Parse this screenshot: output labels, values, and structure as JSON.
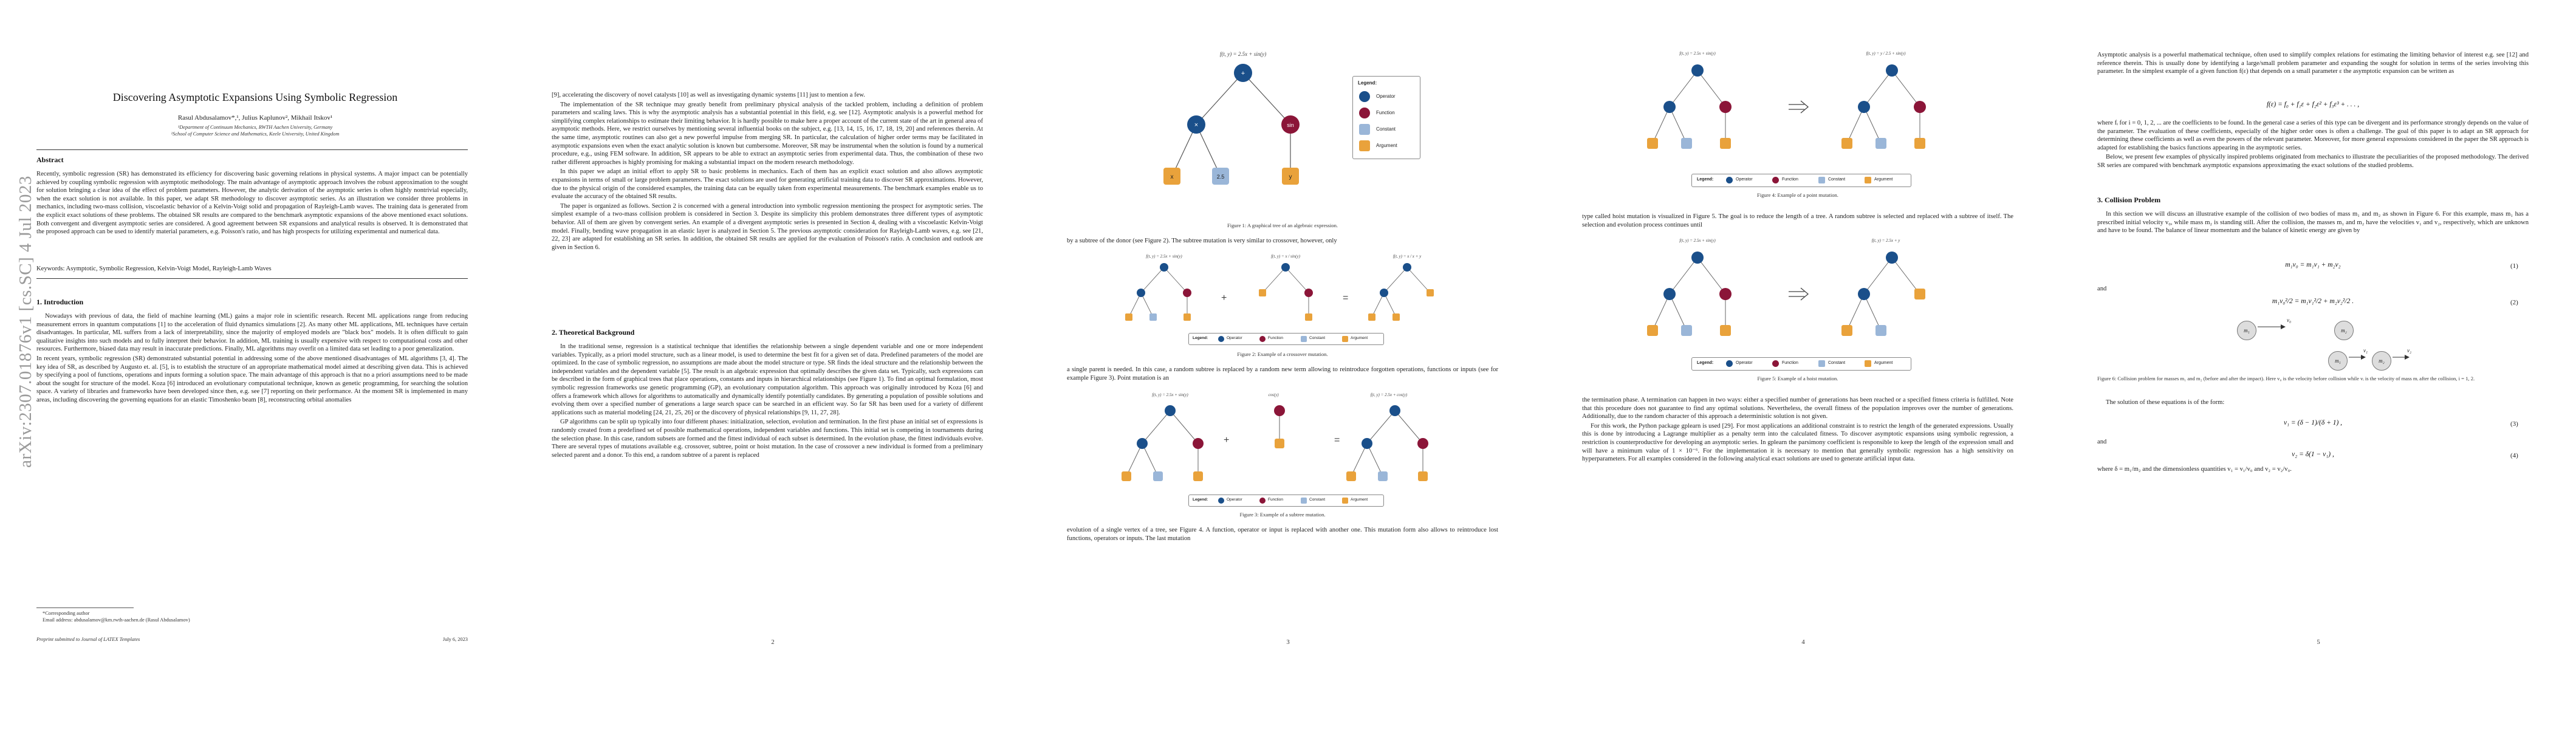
{
  "arxiv_stamp": "arXiv:2307.01876v1 [cs.SC] 4 Jul 2023",
  "colors": {
    "operator": "#1a4f8a",
    "function": "#8b1538",
    "constant": "#9ab6d8",
    "argument": "#e9a23b"
  },
  "page1": {
    "title": "Discovering Asymptotic Expansions Using Symbolic Regression",
    "authors": "Rasul Abdusalamov*,¹, Julius Kaplunov², Mikhail Itskov¹",
    "affil1": "¹Department of Continuum Mechanics, RWTH Aachen University, Germany",
    "affil2": "²School of Computer Science and Mathematics, Keele University, United Kingdom",
    "abstract_heading": "Abstract",
    "abstract": "Recently, symbolic regression (SR) has demonstrated its efficiency for discovering basic governing relations in physical systems. A major impact can be potentially achieved by coupling symbolic regression with asymptotic methodology. The main advantage of asymptotic approach involves the robust approximation to the sought for solution bringing a clear idea of the effect of problem parameters. However, the analytic derivation of the asymptotic series is often highly nontrivial especially, when the exact solution is not available. In this paper, we adapt SR methodology to discover asymptotic series. As an illustration we consider three problems in mechanics, including two-mass collision, viscoelastic behavior of a Kelvin-Voigt solid and propagation of Rayleigh-Lamb waves. The training data is generated from the explicit exact solutions of these problems. The obtained SR results are compared to the benchmark asymptotic expansions of the above mentioned exact solutions. Both convergent and divergent asymptotic series are considered. A good agreement between SR expansions and analytical results is observed. It is demonstrated that the proposed approach can be used to identify material parameters, e.g. Poisson's ratio, and has high prospects for utilizing experimental and numerical data.",
    "keywords": "Keywords: Asymptotic, Symbolic Regression, Kelvin-Voigt Model, Rayleigh-Lamb Waves",
    "intro_heading": "1. Introduction",
    "intro_p1": "Nowadays with previous of data, the field of machine learning (ML) gains a major role in scientific research. Recent ML applications range from reducing measurement errors in quantum computations [1] to the acceleration of fluid dynamics simulations [2]. As many other ML applications, ML techniques have certain disadvantages. In particular, ML suffers from a lack of interpretability, since the majority of employed models are \"black box\" models. It is often difficult to gain qualitative insights into such models and to fully interpret their behavior. In addition, ML training is usually expensive with respect to computational costs and other resources. Furthermore, biased data may result in inaccurate predictions. Finally, ML algorithms may overfit on a limited data set leading to a poor generalization.",
    "intro_p2": "In recent years, symbolic regression (SR) demonstrated substantial potential in addressing some of the above mentioned disadvantages of ML algorithms [3, 4]. The key idea of SR, as described by Augusto et. al. [5], is to establish the structure of an appropriate mathematical model aimed at describing given data. This is achieved by specifying a pool of functions, operations and inputs forming a solution space. The main advantage of this approach is that no a priori assumptions need to be made about the sought for structure of the model. Koza [6] introduced an evolutionary computational technique, known as genetic programming, for searching the solution space. A variety of libraries and frameworks have been developed since then, e.g. see [7] reporting on their performance. At the moment SR is implemented in many areas, including discovering the governing equations for an elastic Timoshenko beam [8], reconstructing orbital anomalies",
    "footnote_mark": "*Corresponding author",
    "footnote_email": "Email address: abdusalamov@km.rwth-aachen.de (Rasul Abdusalamov)",
    "preprint": "Preprint submitted to Journal of LATEX Templates",
    "date": "July 6, 2023"
  },
  "page2": {
    "p1": "[9], accelerating the discovery of novel catalysts [10] as well as investigating dynamic systems [11] just to mention a few.",
    "p2": "The implementation of the SR technique may greatly benefit from preliminary physical analysis of the tackled problem, including a definition of problem parameters and scaling laws. This is why the asymptotic analysis has a substantial potential in this field, e.g. see [12]. Asymptotic analysis is a powerful method for simplifying complex relationships to estimate their limiting behavior. It is hardly possible to make here a proper account of the current state of the art in general area of asymptotic methods. Here, we restrict ourselves by mentioning several influential books on the subject, e.g. [13, 14, 15, 16, 17, 18, 19, 20] and references therein. At the same time, asymptotic routines can also get a new powerful impulse from merging SR. In particular, the calculation of higher order terms may be facilitated in asymptotic expansions even when the exact analytic solution is known but cumbersome. Moreover, SR may be instrumental when the solution is found by a numerical procedure, e.g., using FEM software. In addition, SR appears to be able to extract an asymptotic series from experimental data. Thus, the combination of these two rather different approaches is highly promising for making a substantial impact on the modern research methodology.",
    "p3": "In this paper we adapt an initial effort to apply SR to basic problems in mechanics. Each of them has an explicit exact solution and also allows asymptotic expansions in terms of small or large problem parameters. The exact solutions are used for generating artificial training data to discover SR approximations. However, due to the physical origin of the considered examples, the training data can be equally taken from experimental measurements. The benchmark examples enable us to evaluate the accuracy of the obtained SR results.",
    "p4": "The paper is organized as follows. Section 2 is concerned with a general introduction into symbolic regression mentioning the prospect for asymptotic series. The simplest example of a two-mass collision problem is considered in Section 3. Despite its simplicity this problem demonstrates three different types of asymptotic behavior. All of them are given by convergent series. An example of a divergent asymptotic series is presented in Section 4, dealing with a viscoelastic Kelvin-Voigt model. Finally, bending wave propagation in an elastic layer is analyzed in Section 5. The previous asymptotic consideration for Rayleigh-Lamb waves, e.g. see [21, 22, 23] are adapted for establishing an SR series. In addition, the obtained SR results are applied for the evaluation of Poisson's ratio. A conclusion and outlook are given in Section 6.",
    "heading": "2. Theoretical Background",
    "p5": "In the traditional sense, regression is a statistical technique that identifies the relationship between a single dependent variable and one or more independent variables. Typically, as a priori model structure, such as a linear model, is used to determine the best fit for a given set of data. Predefined parameters of the model are optimized. In the case of symbolic regression, no assumptions are made about the model structure or type. SR finds the ideal structure and the relationship between the independent variables and the dependent variable [5]. The result is an algebraic expression that optimally describes the given data set. Typically, such expressions can be described in the form of graphical trees that place operations, constants and inputs in hierarchical relationships (see Figure 1). To find an optimal formulation, most symbolic regression frameworks use genetic programming (GP), an evolutionary computation algorithm. This approach was originally introduced by Koza [6] and offers a framework which allows for algorithms to automatically and dynamically identify potentially candidates. By generating a population of possible solutions and evolving them over a specified number of generations a large search space can be searched in an efficient way. So far SR has been used for a variety of different applications such as material modeling [24, 21, 25, 26] or the discovery of physical relationships [9, 11, 27, 28].",
    "p6": "GP algorithms can be split up typically into four different phases: initialization, selection, evolution and termination. In the first phase an initial set of expressions is randomly created from a predefined set of possible mathematical operations, independent variables and functions. This initial set is competing in tournaments during the selection phase. In this case, random subsets are formed and the fittest individual of each subset is determined. In the evolution phase, the fittest individuals evolve. There are several types of mutations available e.g. crossover, subtree, point or hoist mutation. In the case of crossover a new individual is formed from a preliminary selected parent and a donor. To this end, a random subtree of a parent is replaced",
    "page_num": "2"
  },
  "page3": {
    "fig1_title": "f(t, y) = 2.5x + sin(y)",
    "fig1_caption": "Figure 1: A graphical tree of an algebraic expression.",
    "legend_label": "Legend:",
    "legend_operator": "Operator",
    "legend_function": "Function",
    "legend_constant": "Constant",
    "legend_argument": "Argument",
    "node_mul": "×",
    "node_add": "+",
    "node_sin": "sin",
    "node_x": "x",
    "node_y": "y",
    "node_c": "2.5",
    "p1": "by a subtree of the donor (see Figure 2). The subtree mutation is very similar to crossover, however, only",
    "fig2_t1": "f(t, y) = 2.5x + sin(y)",
    "fig2_t2": "f(t, y) = x / sin(y)",
    "fig2_t3": "f(t, y) = x / x + y",
    "fig2_plus": "+",
    "fig2_eq": "=",
    "fig2_caption": "Figure 2: Example of a crossover mutation.",
    "p2": "a single parent is needed. In this case, a random subtree is replaced by a random new term allowing to reintroduce forgotten operations, functions or inputs (see for example Figure 3). Point mutation is an",
    "fig3_t1": "f(t, y) = 2.5x + sin(y)",
    "fig3_t2": "cos(y)",
    "fig3_t3": "f(t, y) = 2.5x + cos(y)",
    "fig3_caption": "Figure 3: Example of a subtree mutation.",
    "p3": "evolution of a single vertex of a tree, see Figure 4. A function, operator or input is replaced with another one. This mutation form also allows to reintroduce lost functions, operators or inputs. The last mutation",
    "page_num": "3"
  },
  "page4": {
    "fig4_t1": "f(t, y) = 2.5x + sin(y)",
    "fig4_t2": "f(t, y) = y / 2.5 + sin(y)",
    "fig4_caption": "Figure 4: Example of a point mutation.",
    "p1": "type called hoist mutation is visualized in Figure 5. The goal is to reduce the length of a tree. A random subtree is selected and replaced with a subtree of itself. The selection and evolution process continues until",
    "fig5_t1": "f(t, y) = 2.5x + sin(y)",
    "fig5_t2": "f(t, y) = 2.5x + y",
    "fig5_caption": "Figure 5: Example of a hoist mutation.",
    "p2": "the termination phase. A termination can happen in two ways: either a specified number of generations has been reached or a specified fitness criteria is fulfilled. Note that this procedure does not guarantee to find any optimal solutions. Nevertheless, the overall fitness of the population improves over the number of generations. Additionally, due to the random character of this approach a deterministic solution is not given.",
    "p3": "For this work, the Python package gplearn is used [29]. For most applications an additional constraint is to restrict the length of the generated expressions. Usually this is done by introducing a Lagrange multiplier as a penalty term into the calculated fitness. To discover asymptotic expansions using symbolic regression, a restriction is counterproductive for developing an asymptotic series. In gplearn the parsimony coefficient is responsible to keep the length of the expression small and will have a minimum value of 1 × 10⁻⁶. For the implementation it is necessary to mention that generally symbolic regression has a high sensitivity on hyperparameters. For all examples considered in the following analytical exact solutions are used to generate artificial input data.",
    "page_num": "4"
  },
  "page5": {
    "p1": "Asymptotic analysis is a powerful mathematical technique, often used to simplify complex relations for estimating the limiting behavior of interest e.g. see [12] and reference therein. This is usually done by identifying a large/small problem parameter and expanding the sought for solution in terms of the series involving this parameter. In the simplest example of a given function f(ε) that depends on a small parameter ε the asymptotic expansion can be written as",
    "eq_series": "f(ε) = f₀ + f₁ε + f₂ε² + f₃ε³ + . . . ,",
    "p2": "where fᵢ for i = 0, 1, 2, ... are the coefficients to be found. In the general case a series of this type can be divergent and its performance strongly depends on the value of the parameter. The evaluation of these coefficients, especially of the higher order ones is often a challenge. The goal of this paper is to adapt an SR approach for determining these coefficients as well as even the powers of the relevant parameter. Moreover, for more general expressions considered in the paper the SR approach is adapted for establishing the basics functions appearing in the asymptotic series.",
    "p3": "Below, we present few examples of physically inspired problems originated from mechanics to illustrate the peculiarities of the proposed methodology. The derived SR series are compared with benchmark asymptotic expansions approximating the exact solutions of the studied problems.",
    "heading": "3. Collision Problem",
    "p4": "In this section we will discuss an illustrative example of the collision of two bodies of mass m₁ and m₂ as shown in Figure 6. For this example, mass m₁ has a prescribed initial velocity v₀, while mass m₂ is standing still. After the collision, the masses m₁ and m₂ have the velocities v₁ and v₂, respectively, which are unknown and have to be found. The balance of linear momentum and the balance of kinetic energy are given by",
    "eq1": "m₁v₀ = m₁v₁ + m₂v₂",
    "eq1_num": "(1)",
    "and1": "and",
    "eq2": "m₁v₀²/2 = m₁v₁²/2 + m₂v₂²/2 .",
    "eq2_num": "(2)",
    "ball1": "m₁",
    "ball2": "m₂",
    "ball3": "m₁",
    "ball4": "m₂",
    "v0": "v₀",
    "v1": "v₁",
    "v2": "v₂",
    "fig6_caption": "Figure 6: Collision problem for masses m₁ and m₂ (before and after the impact). Here v₀ is the velocity before collision while vᵢ is the velocity of mass mᵢ after the collision, i = 1, 2.",
    "p5": "The solution of these equations is of the form:",
    "eq3": "v₁ = (δ − 1)/(δ + 1) ,",
    "eq3_num": "(3)",
    "and2": "and",
    "eq4": "v₂ = δ(1 − v₁) ,",
    "eq4_num": "(4)",
    "p6": "where δ = m₁/m₂ and the dimensionless quantities v₁ = v₁/v₀ and v₂ = v₂/v₀.",
    "page_num": "5"
  }
}
